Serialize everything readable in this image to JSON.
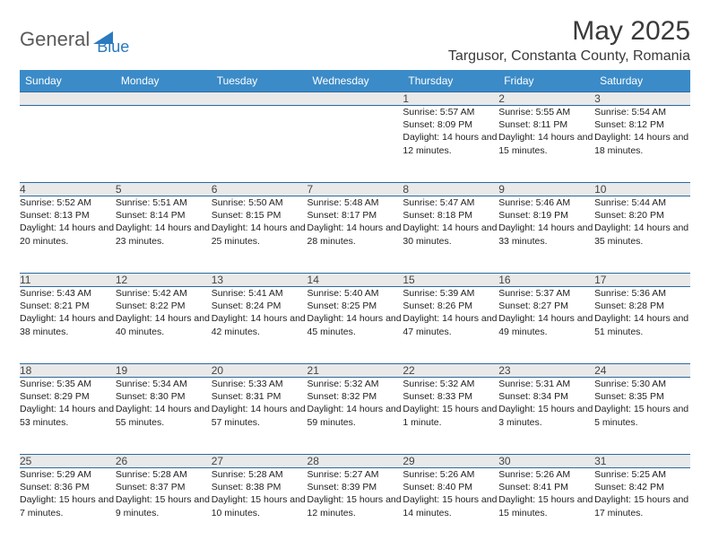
{
  "logo": {
    "part1": "General",
    "part2": "Blue"
  },
  "title": "May 2025",
  "location": "Targusor, Constanta County, Romania",
  "colors": {
    "header_bg": "#3b8bc8",
    "header_text": "#ffffff",
    "daynum_bg": "#e9e9e9",
    "border": "#2a6aa0",
    "logo_gray": "#5a5a5a",
    "logo_blue": "#2a7abf"
  },
  "weekdays": [
    "Sunday",
    "Monday",
    "Tuesday",
    "Wednesday",
    "Thursday",
    "Friday",
    "Saturday"
  ],
  "weeks": [
    [
      null,
      null,
      null,
      null,
      {
        "n": "1",
        "sr": "5:57 AM",
        "ss": "8:09 PM",
        "d": "14 hours and 12 minutes."
      },
      {
        "n": "2",
        "sr": "5:55 AM",
        "ss": "8:11 PM",
        "d": "14 hours and 15 minutes."
      },
      {
        "n": "3",
        "sr": "5:54 AM",
        "ss": "8:12 PM",
        "d": "14 hours and 18 minutes."
      }
    ],
    [
      {
        "n": "4",
        "sr": "5:52 AM",
        "ss": "8:13 PM",
        "d": "14 hours and 20 minutes."
      },
      {
        "n": "5",
        "sr": "5:51 AM",
        "ss": "8:14 PM",
        "d": "14 hours and 23 minutes."
      },
      {
        "n": "6",
        "sr": "5:50 AM",
        "ss": "8:15 PM",
        "d": "14 hours and 25 minutes."
      },
      {
        "n": "7",
        "sr": "5:48 AM",
        "ss": "8:17 PM",
        "d": "14 hours and 28 minutes."
      },
      {
        "n": "8",
        "sr": "5:47 AM",
        "ss": "8:18 PM",
        "d": "14 hours and 30 minutes."
      },
      {
        "n": "9",
        "sr": "5:46 AM",
        "ss": "8:19 PM",
        "d": "14 hours and 33 minutes."
      },
      {
        "n": "10",
        "sr": "5:44 AM",
        "ss": "8:20 PM",
        "d": "14 hours and 35 minutes."
      }
    ],
    [
      {
        "n": "11",
        "sr": "5:43 AM",
        "ss": "8:21 PM",
        "d": "14 hours and 38 minutes."
      },
      {
        "n": "12",
        "sr": "5:42 AM",
        "ss": "8:22 PM",
        "d": "14 hours and 40 minutes."
      },
      {
        "n": "13",
        "sr": "5:41 AM",
        "ss": "8:24 PM",
        "d": "14 hours and 42 minutes."
      },
      {
        "n": "14",
        "sr": "5:40 AM",
        "ss": "8:25 PM",
        "d": "14 hours and 45 minutes."
      },
      {
        "n": "15",
        "sr": "5:39 AM",
        "ss": "8:26 PM",
        "d": "14 hours and 47 minutes."
      },
      {
        "n": "16",
        "sr": "5:37 AM",
        "ss": "8:27 PM",
        "d": "14 hours and 49 minutes."
      },
      {
        "n": "17",
        "sr": "5:36 AM",
        "ss": "8:28 PM",
        "d": "14 hours and 51 minutes."
      }
    ],
    [
      {
        "n": "18",
        "sr": "5:35 AM",
        "ss": "8:29 PM",
        "d": "14 hours and 53 minutes."
      },
      {
        "n": "19",
        "sr": "5:34 AM",
        "ss": "8:30 PM",
        "d": "14 hours and 55 minutes."
      },
      {
        "n": "20",
        "sr": "5:33 AM",
        "ss": "8:31 PM",
        "d": "14 hours and 57 minutes."
      },
      {
        "n": "21",
        "sr": "5:32 AM",
        "ss": "8:32 PM",
        "d": "14 hours and 59 minutes."
      },
      {
        "n": "22",
        "sr": "5:32 AM",
        "ss": "8:33 PM",
        "d": "15 hours and 1 minute."
      },
      {
        "n": "23",
        "sr": "5:31 AM",
        "ss": "8:34 PM",
        "d": "15 hours and 3 minutes."
      },
      {
        "n": "24",
        "sr": "5:30 AM",
        "ss": "8:35 PM",
        "d": "15 hours and 5 minutes."
      }
    ],
    [
      {
        "n": "25",
        "sr": "5:29 AM",
        "ss": "8:36 PM",
        "d": "15 hours and 7 minutes."
      },
      {
        "n": "26",
        "sr": "5:28 AM",
        "ss": "8:37 PM",
        "d": "15 hours and 9 minutes."
      },
      {
        "n": "27",
        "sr": "5:28 AM",
        "ss": "8:38 PM",
        "d": "15 hours and 10 minutes."
      },
      {
        "n": "28",
        "sr": "5:27 AM",
        "ss": "8:39 PM",
        "d": "15 hours and 12 minutes."
      },
      {
        "n": "29",
        "sr": "5:26 AM",
        "ss": "8:40 PM",
        "d": "15 hours and 14 minutes."
      },
      {
        "n": "30",
        "sr": "5:26 AM",
        "ss": "8:41 PM",
        "d": "15 hours and 15 minutes."
      },
      {
        "n": "31",
        "sr": "5:25 AM",
        "ss": "8:42 PM",
        "d": "15 hours and 17 minutes."
      }
    ]
  ],
  "labels": {
    "sunrise": "Sunrise: ",
    "sunset": "Sunset: ",
    "daylight": "Daylight: "
  }
}
